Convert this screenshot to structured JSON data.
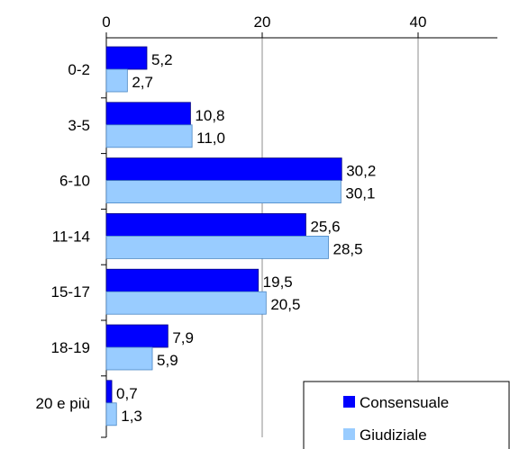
{
  "chart_data": {
    "type": "bar",
    "orientation": "horizontal",
    "categories": [
      "0-2",
      "3-5",
      "6-10",
      "11-14",
      "15-17",
      "18-19",
      "20 e più"
    ],
    "series": [
      {
        "name": "Consensuale",
        "color": "#0000ff",
        "values": [
          5.2,
          10.8,
          30.2,
          25.6,
          19.5,
          7.9,
          0.7
        ],
        "labels": [
          "5,2",
          "10,8",
          "30,2",
          "25,6",
          "19,5",
          "7,9",
          "0,7"
        ]
      },
      {
        "name": "Giudiziale",
        "color": "#99ccff",
        "values": [
          2.7,
          11.0,
          30.1,
          28.5,
          20.5,
          5.9,
          1.3
        ],
        "labels": [
          "2,7",
          "11,0",
          "30,1",
          "28,5",
          "20,5",
          "5,9",
          "1,3"
        ]
      }
    ],
    "xticks": [
      "0",
      "20",
      "40"
    ],
    "xlim": [
      0,
      49
    ],
    "xaxis_position": "top",
    "grid": "vertical",
    "legend_position": "bottom-right",
    "title": "",
    "xlabel": "",
    "ylabel": ""
  }
}
